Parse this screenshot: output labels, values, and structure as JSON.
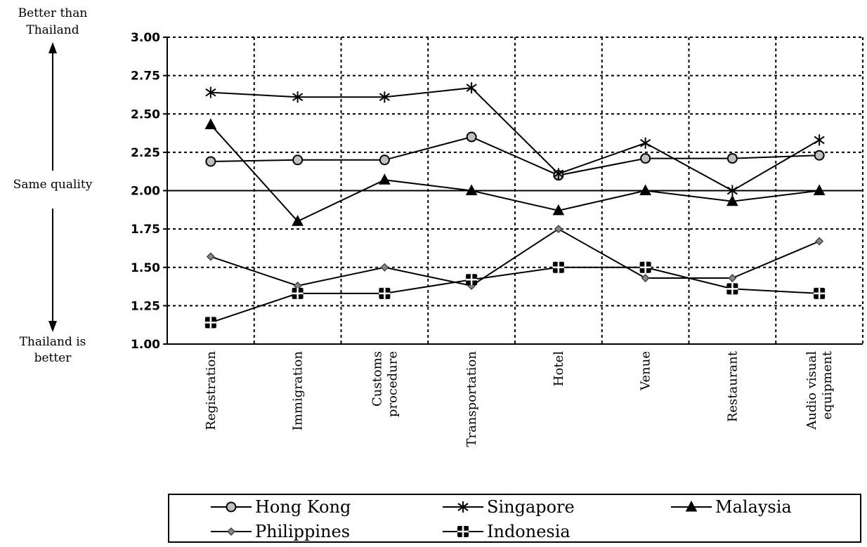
{
  "chart_data": {
    "type": "line",
    "categories": [
      [
        "Registration"
      ],
      [
        "Immigration"
      ],
      [
        "Customs",
        "procedure"
      ],
      [
        "Transportation"
      ],
      [
        "Hotel"
      ],
      [
        "Venue"
      ],
      [
        "Restaurant"
      ],
      [
        "Audio visual",
        "equipment"
      ]
    ],
    "series": [
      {
        "name": "Hong Kong",
        "marker": "circle",
        "values": [
          2.19,
          2.2,
          2.2,
          2.35,
          2.1,
          2.21,
          2.21,
          2.23
        ]
      },
      {
        "name": "Singapore",
        "marker": "star",
        "values": [
          2.64,
          2.61,
          2.61,
          2.67,
          2.11,
          2.31,
          2.0,
          2.33
        ]
      },
      {
        "name": "Malaysia",
        "marker": "triangle",
        "values": [
          2.43,
          1.8,
          2.07,
          2.0,
          1.87,
          2.0,
          1.93,
          2.0
        ]
      },
      {
        "name": "Philippines",
        "marker": "diamond",
        "values": [
          1.57,
          1.38,
          1.5,
          1.38,
          1.75,
          1.43,
          1.43,
          1.67
        ]
      },
      {
        "name": "Indonesia",
        "marker": "cross-square",
        "values": [
          1.14,
          1.33,
          1.33,
          1.42,
          1.5,
          1.5,
          1.36,
          1.33
        ]
      }
    ],
    "ylim": [
      1.0,
      3.0
    ],
    "yticks": [
      "1.00",
      "1.25",
      "1.50",
      "1.75",
      "2.00",
      "2.25",
      "2.50",
      "2.75",
      "3.00"
    ],
    "reference_line": 2.0,
    "grid": true,
    "legend_position": "bottom",
    "annotations": {
      "top": [
        "Better than",
        "Thailand"
      ],
      "middle": "Same quality",
      "bottom": [
        "Thailand is",
        "better"
      ]
    }
  }
}
